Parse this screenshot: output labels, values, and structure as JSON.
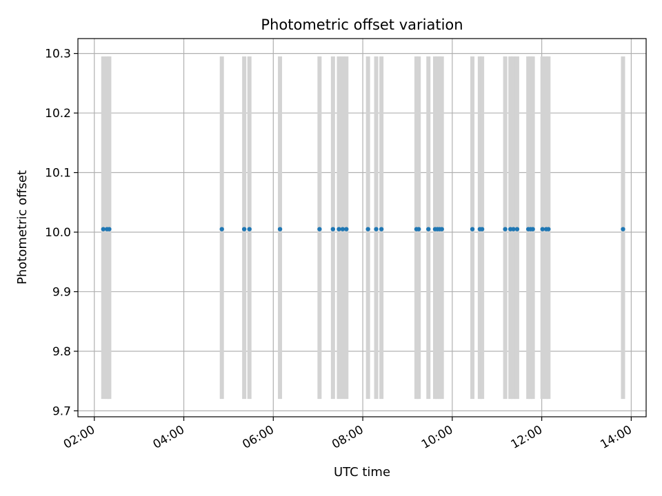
{
  "chart_data": {
    "type": "scatter",
    "title": "Photometric offset variation",
    "xlabel": "UTC time",
    "ylabel": "Photometric offset",
    "x_axis_kind": "time",
    "xlim": [
      "01:38",
      "14:20"
    ],
    "ylim": [
      9.69,
      10.325
    ],
    "x_ticks": [
      "02:00",
      "04:00",
      "06:00",
      "08:00",
      "10:00",
      "12:00",
      "14:00"
    ],
    "y_ticks": [
      9.7,
      9.8,
      9.9,
      10.0,
      10.1,
      10.2,
      10.3
    ],
    "y_tick_labels": [
      "9.7",
      "9.8",
      "9.9",
      "10.0",
      "10.1",
      "10.2",
      "10.3"
    ],
    "grid": true,
    "point_color": "#1f77b4",
    "band_color": "#d3d3d3",
    "band_range": [
      9.72,
      10.295
    ],
    "series": [
      {
        "x": [
          "02:12",
          "02:17",
          "02:20",
          "04:51",
          "05:21",
          "05:28",
          "06:09",
          "07:02",
          "07:20",
          "07:28",
          "07:33",
          "07:38",
          "08:07",
          "08:18",
          "08:25",
          "09:12",
          "09:15",
          "09:28",
          "09:37",
          "09:40",
          "09:43",
          "09:46",
          "10:27",
          "10:37",
          "10:40",
          "11:11",
          "11:18",
          "11:22",
          "11:27",
          "11:42",
          "11:45",
          "11:48",
          "12:01",
          "12:06",
          "12:09",
          "13:49"
        ],
        "y": [
          10.005,
          10.005,
          10.005,
          10.005,
          10.005,
          10.005,
          10.005,
          10.005,
          10.005,
          10.005,
          10.005,
          10.005,
          10.005,
          10.005,
          10.005,
          10.005,
          10.005,
          10.005,
          10.005,
          10.005,
          10.005,
          10.005,
          10.005,
          10.005,
          10.005,
          10.005,
          10.005,
          10.005,
          10.005,
          10.005,
          10.005,
          10.005,
          10.005,
          10.005,
          10.005,
          10.005
        ]
      }
    ]
  }
}
